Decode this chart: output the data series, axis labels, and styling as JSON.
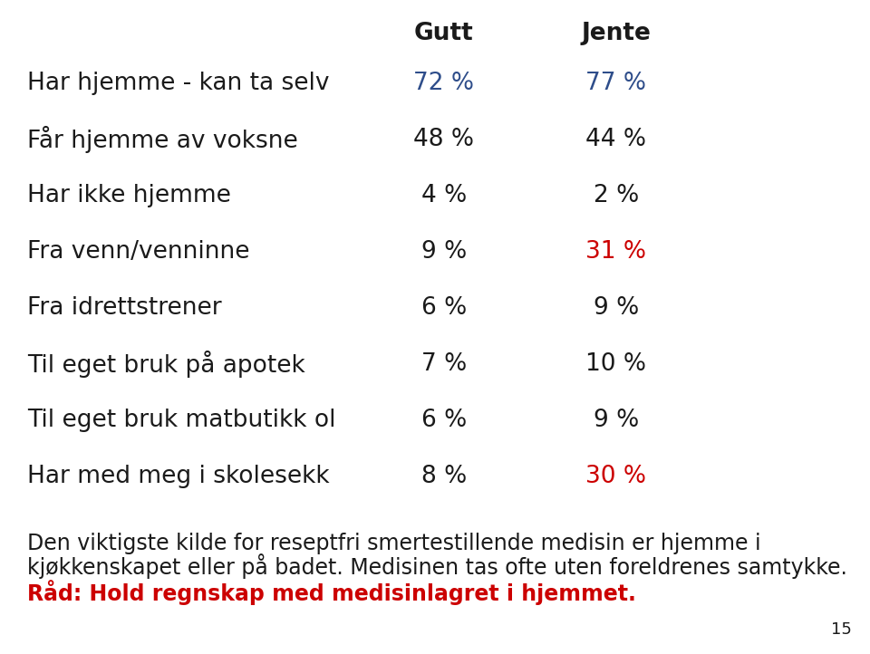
{
  "header_gutt": "Gutt",
  "header_jente": "Jente",
  "rows": [
    {
      "label": "Har hjemme - kan ta selv",
      "gutt": "72 %",
      "jente": "77 %",
      "gutt_color": "#2E4D8A",
      "jente_color": "#2E4D8A"
    },
    {
      "label": "Får hjemme av voksne",
      "gutt": "48 %",
      "jente": "44 %",
      "gutt_color": "#1a1a1a",
      "jente_color": "#1a1a1a"
    },
    {
      "label": "Har ikke hjemme",
      "gutt": "4 %",
      "jente": "2 %",
      "gutt_color": "#1a1a1a",
      "jente_color": "#1a1a1a"
    },
    {
      "label": "Fra venn/venninne",
      "gutt": "9 %",
      "jente": "31 %",
      "gutt_color": "#1a1a1a",
      "jente_color": "#CC0000"
    },
    {
      "label": "Fra idrettstrener",
      "gutt": "6 %",
      "jente": "9 %",
      "gutt_color": "#1a1a1a",
      "jente_color": "#1a1a1a"
    },
    {
      "label": "Til eget bruk på apotek",
      "gutt": "7 %",
      "jente": "10 %",
      "gutt_color": "#1a1a1a",
      "jente_color": "#1a1a1a"
    },
    {
      "label": "Til eget bruk matbutikk ol",
      "gutt": "6 %",
      "jente": "9 %",
      "gutt_color": "#1a1a1a",
      "jente_color": "#1a1a1a"
    },
    {
      "label": "Har med meg i skolesekk",
      "gutt": "8 %",
      "jente": "30 %",
      "gutt_color": "#1a1a1a",
      "jente_color": "#CC0000"
    }
  ],
  "footer_line1": "Den viktigste kilde for reseptfri smertestillende medisin er hjemme i",
  "footer_line2": "kjøkkenskapet eller på badet. Medisinen tas ofte uten foreldrenes samtykke.",
  "footer_bold_red": "Råd: Hold regnskap med medisinlagret i hjemmet.",
  "page_number": "15",
  "bg_color": "#FFFFFF",
  "label_color": "#1a1a1a",
  "header_color": "#1a1a1a",
  "label_fontsize": 19,
  "header_fontsize": 19,
  "value_fontsize": 19,
  "footer_fontsize": 17,
  "footer_bold_fontsize": 17,
  "page_fontsize": 13
}
